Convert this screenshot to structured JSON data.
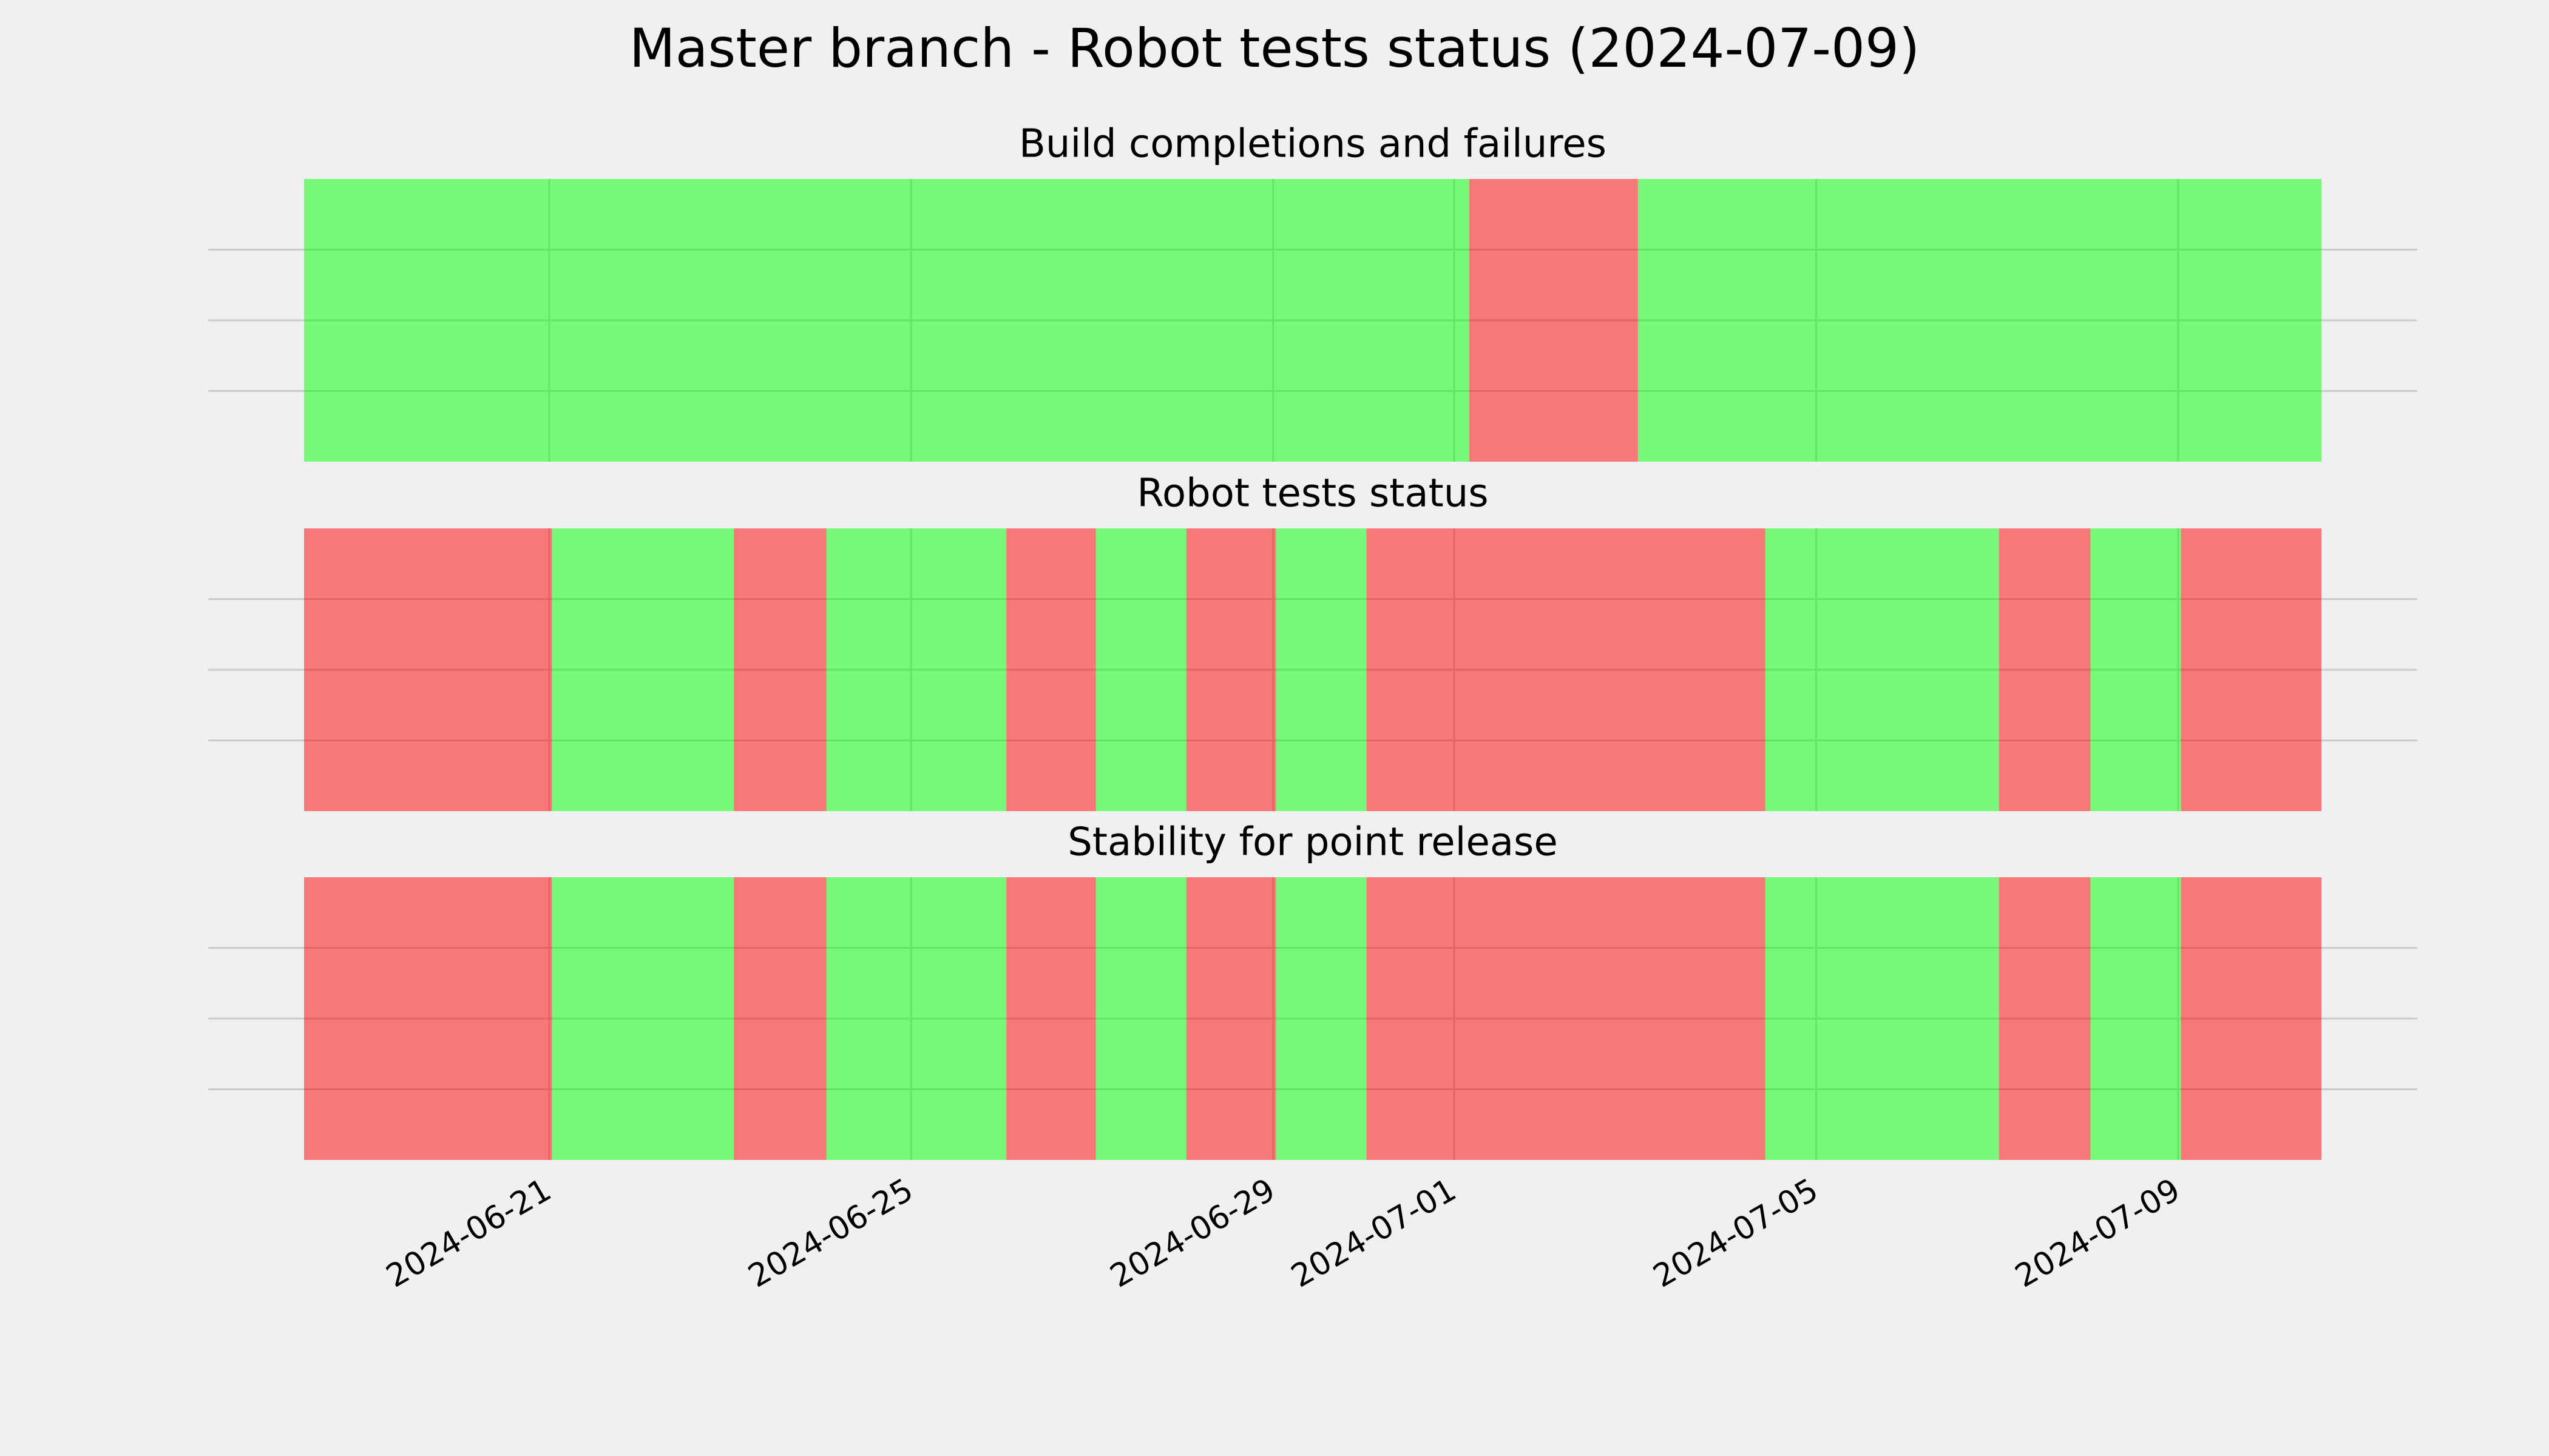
{
  "title": "Master branch - Robot tests status (2024-07-09)",
  "xaxis": {
    "xlim": [
      "2024-06-18T07:00",
      "2024-07-10T14:00"
    ],
    "xticks": [
      {
        "value": "2024-06-21",
        "label": "2024-06-21"
      },
      {
        "value": "2024-06-25",
        "label": "2024-06-25"
      },
      {
        "value": "2024-06-29",
        "label": "2024-06-29"
      },
      {
        "value": "2024-07-01",
        "label": "2024-07-01"
      },
      {
        "value": "2024-07-05",
        "label": "2024-07-05"
      },
      {
        "value": "2024-07-09",
        "label": "2024-07-09"
      }
    ],
    "grid": true
  },
  "chart_data": [
    {
      "type": "timeline",
      "title": "Build completions and failures",
      "alpha": 0.5,
      "segments": [
        {
          "start": "2024-06-18T07:00",
          "end": "2024-07-01T04:00",
          "color": "#00ff00"
        },
        {
          "start": "2024-07-01T04:00",
          "end": "2024-07-03T00:45",
          "color": "#ff0000"
        },
        {
          "start": "2024-07-03T00:45",
          "end": "2024-07-10T14:00",
          "color": "#00ff00"
        }
      ]
    },
    {
      "type": "timeline",
      "title": "Robot tests status",
      "alpha": 0.5,
      "segments": [
        {
          "start": "2024-06-18T07:00",
          "end": "2024-06-21T00:45",
          "color": "#ff0000"
        },
        {
          "start": "2024-06-21T00:45",
          "end": "2024-06-23T01:00",
          "color": "#00ff00"
        },
        {
          "start": "2024-06-23T01:00",
          "end": "2024-06-24T01:30",
          "color": "#ff0000"
        },
        {
          "start": "2024-06-24T01:30",
          "end": "2024-06-26T01:15",
          "color": "#00ff00"
        },
        {
          "start": "2024-06-26T01:15",
          "end": "2024-06-27T01:00",
          "color": "#ff0000"
        },
        {
          "start": "2024-06-27T01:00",
          "end": "2024-06-28T01:00",
          "color": "#00ff00"
        },
        {
          "start": "2024-06-28T01:00",
          "end": "2024-06-29T00:45",
          "color": "#ff0000"
        },
        {
          "start": "2024-06-29T00:45",
          "end": "2024-06-30T00:45",
          "color": "#00ff00"
        },
        {
          "start": "2024-06-30T00:45",
          "end": "2024-07-04T10:30",
          "color": "#ff0000"
        },
        {
          "start": "2024-07-04T10:30",
          "end": "2024-07-07T00:30",
          "color": "#00ff00"
        },
        {
          "start": "2024-07-07T00:30",
          "end": "2024-07-08T00:45",
          "color": "#ff0000"
        },
        {
          "start": "2024-07-08T00:45",
          "end": "2024-07-09T00:45",
          "color": "#00ff00"
        },
        {
          "start": "2024-07-09T00:45",
          "end": "2024-07-10T14:00",
          "color": "#ff0000"
        }
      ]
    },
    {
      "type": "timeline",
      "title": "Stability for point release",
      "alpha": 0.5,
      "xtick_labels": true,
      "segments": [
        {
          "start": "2024-06-18T07:00",
          "end": "2024-06-21T00:45",
          "color": "#ff0000"
        },
        {
          "start": "2024-06-21T00:45",
          "end": "2024-06-23T01:00",
          "color": "#00ff00"
        },
        {
          "start": "2024-06-23T01:00",
          "end": "2024-06-24T01:30",
          "color": "#ff0000"
        },
        {
          "start": "2024-06-24T01:30",
          "end": "2024-06-26T01:15",
          "color": "#00ff00"
        },
        {
          "start": "2024-06-26T01:15",
          "end": "2024-06-27T01:00",
          "color": "#ff0000"
        },
        {
          "start": "2024-06-27T01:00",
          "end": "2024-06-28T01:00",
          "color": "#00ff00"
        },
        {
          "start": "2024-06-28T01:00",
          "end": "2024-06-29T00:45",
          "color": "#ff0000"
        },
        {
          "start": "2024-06-29T00:45",
          "end": "2024-06-30T00:45",
          "color": "#00ff00"
        },
        {
          "start": "2024-06-30T00:45",
          "end": "2024-07-04T10:30",
          "color": "#ff0000"
        },
        {
          "start": "2024-07-04T10:30",
          "end": "2024-07-07T00:30",
          "color": "#00ff00"
        },
        {
          "start": "2024-07-07T00:30",
          "end": "2024-07-08T00:45",
          "color": "#ff0000"
        },
        {
          "start": "2024-07-08T00:45",
          "end": "2024-07-09T00:45",
          "color": "#00ff00"
        },
        {
          "start": "2024-07-09T00:45",
          "end": "2024-07-10T14:00",
          "color": "#ff0000"
        }
      ]
    }
  ]
}
